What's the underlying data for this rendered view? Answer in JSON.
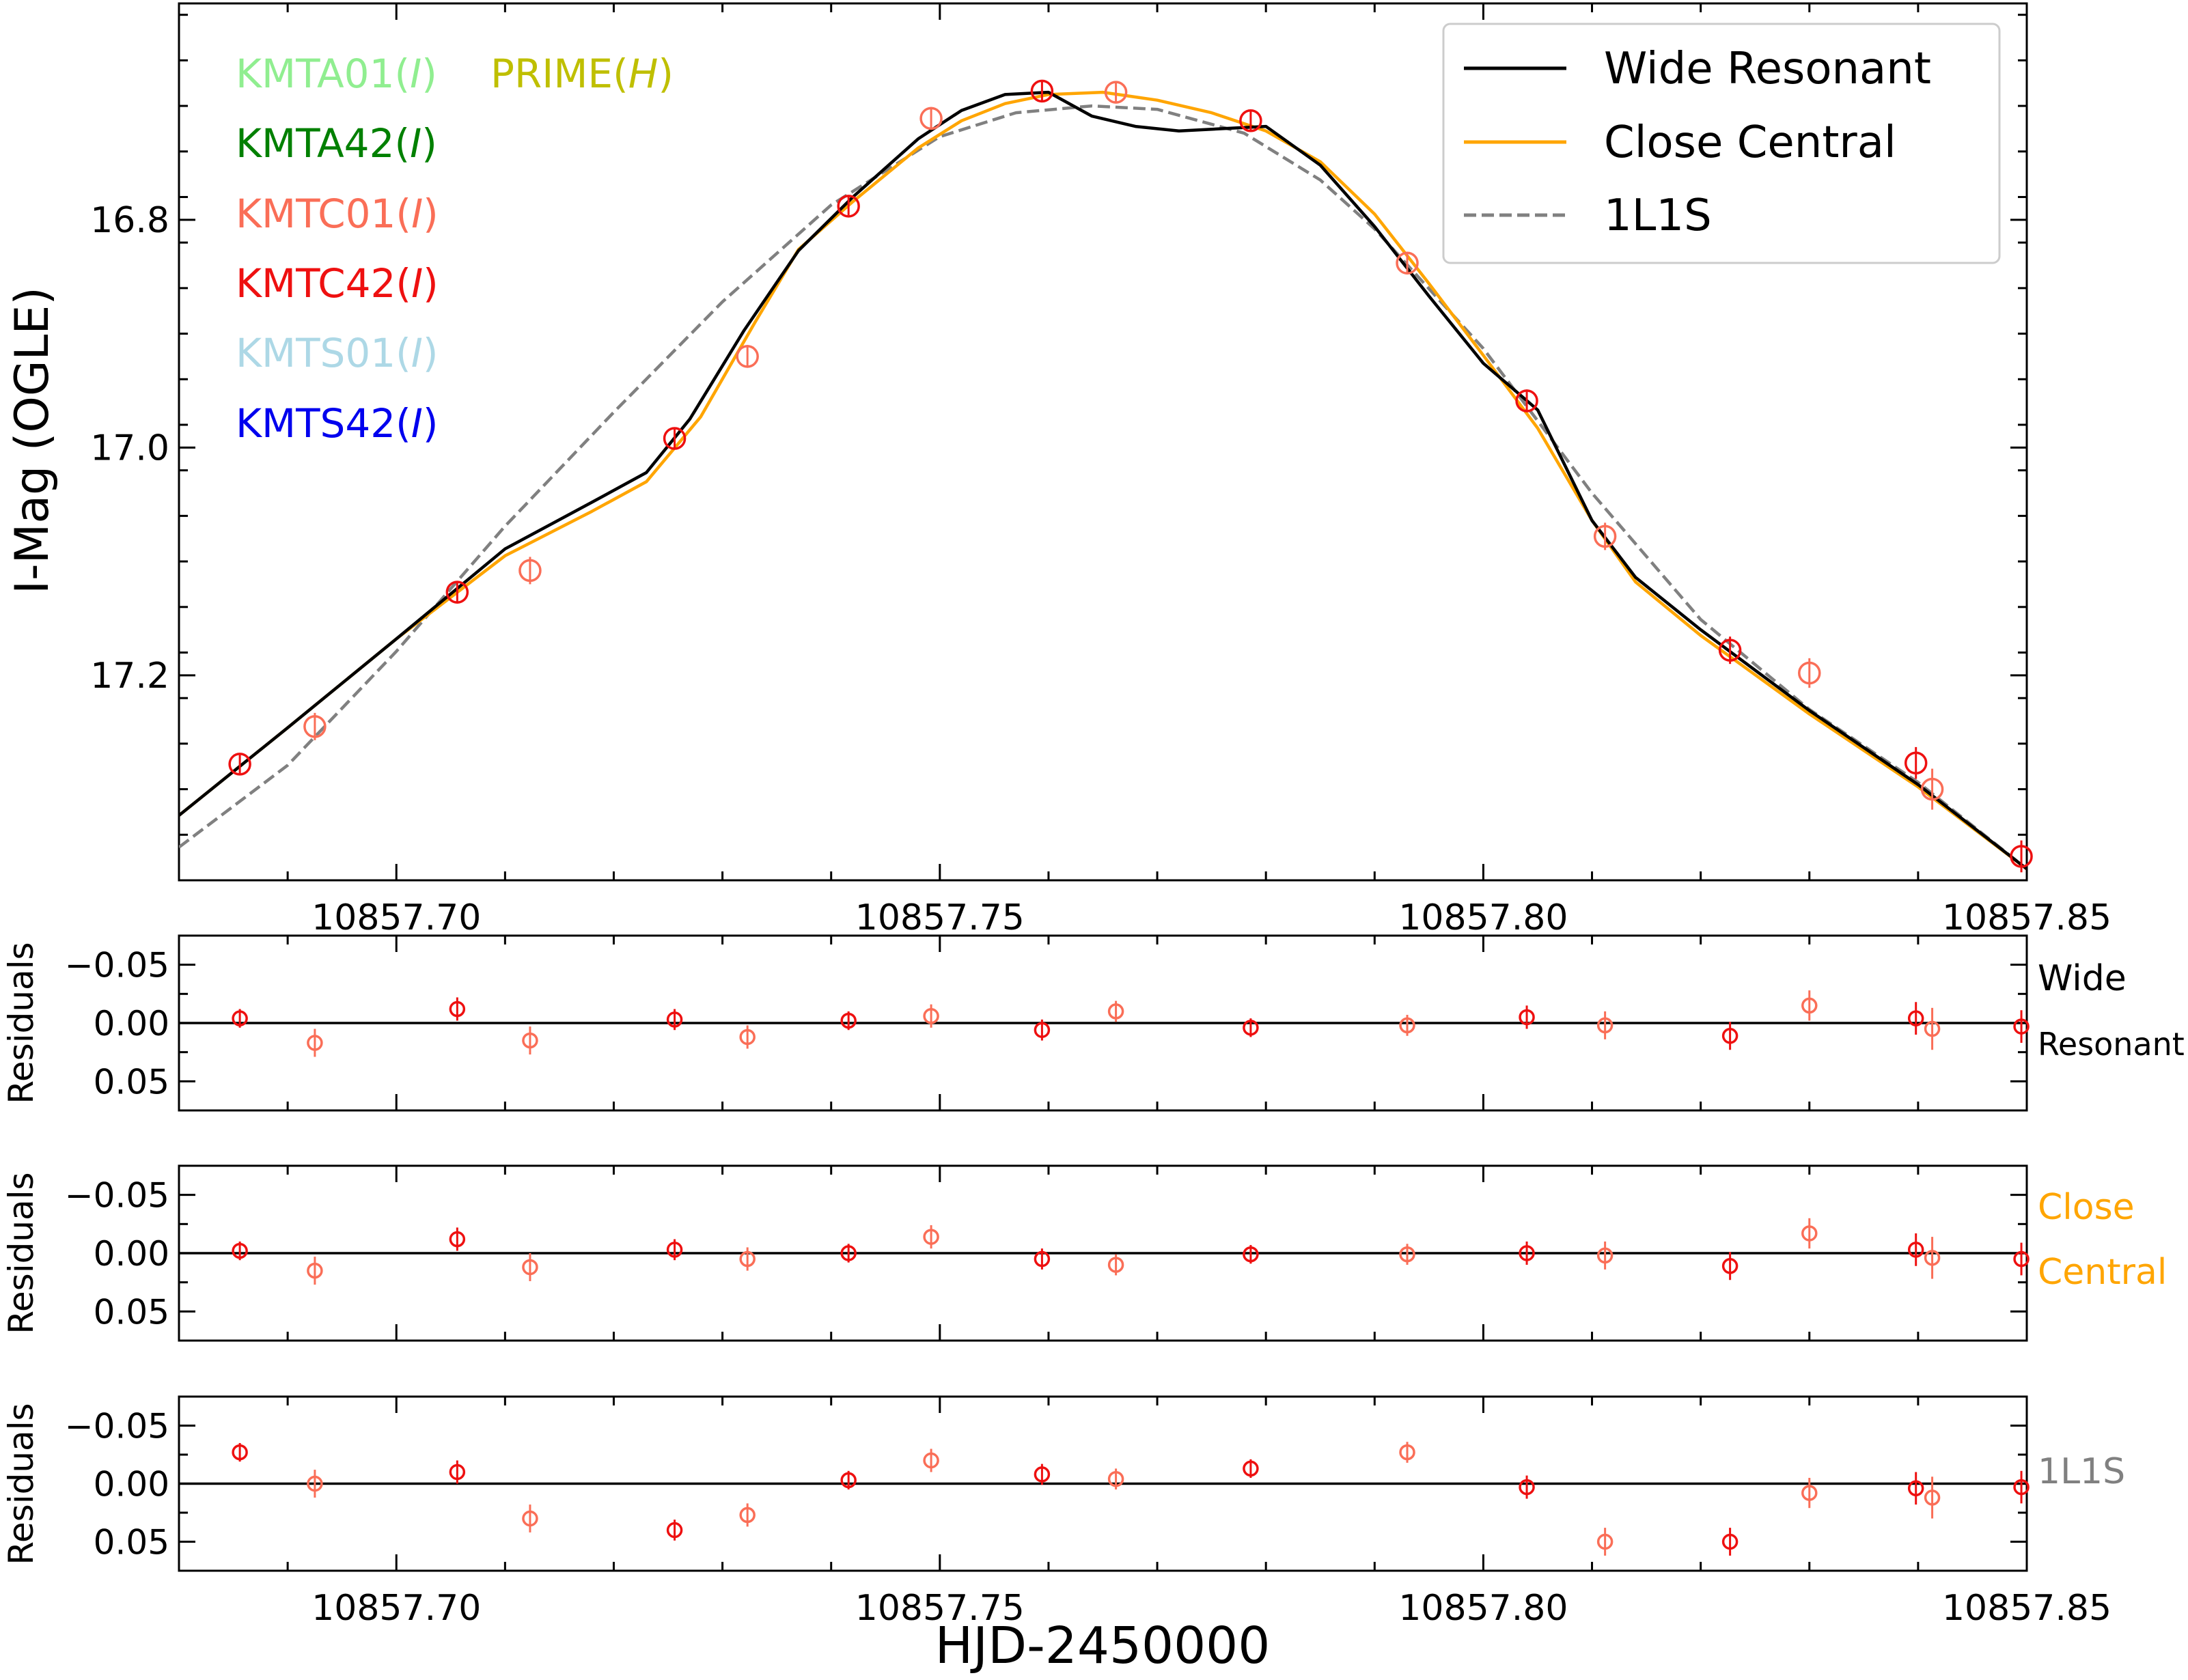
{
  "chart_data": {
    "type": "scatter",
    "xlabel": "HJD-2450000",
    "xlim": [
      10857.68,
      10857.85
    ],
    "x_ticks": [
      10857.7,
      10857.75,
      10857.8,
      10857.85
    ],
    "x_tick_labels": [
      "10857.70",
      "10857.75",
      "10857.80",
      "10857.85"
    ],
    "colors": {
      "wide": "#000000",
      "close": "#ffa500",
      "single": "#808080",
      "kmtc01": "#fa6e57",
      "kmtc42": "#ee1010"
    },
    "main": {
      "ylabel": "I-Mag (OGLE)",
      "ylim": [
        17.38,
        16.61
      ],
      "y_ticks": [
        16.8,
        17.0,
        17.2
      ],
      "y_tick_labels": [
        "16.8",
        "17.0",
        "17.2"
      ],
      "legend_position": "top-right",
      "legend": [
        {
          "label": "Wide Resonant",
          "key": "wide",
          "style": "solid"
        },
        {
          "label": "Close Central",
          "key": "close",
          "style": "solid"
        },
        {
          "label": "1L1S",
          "key": "single",
          "style": "dashed"
        }
      ],
      "datasets_legend": [
        {
          "name": "KMTA01",
          "band": "I",
          "color": "#90ee90"
        },
        {
          "name": "KMTA42",
          "band": "I",
          "color": "#008000"
        },
        {
          "name": "KMTC01",
          "band": "I",
          "color": "#fa6e57"
        },
        {
          "name": "KMTC42",
          "band": "I",
          "color": "#ee1010"
        },
        {
          "name": "KMTS01",
          "band": "I",
          "color": "#add8e6"
        },
        {
          "name": "KMTS42",
          "band": "I",
          "color": "#0000ee"
        },
        {
          "name": "PRIME",
          "band": "H",
          "color": "#bfbf00"
        }
      ],
      "series": [
        {
          "name": "KMTC42",
          "color_key": "kmtc42",
          "x": [
            10857.6856,
            10857.7056,
            10857.7256,
            10857.7416,
            10857.7594,
            10857.7786,
            10857.804,
            10857.8227,
            10857.8398,
            10857.8495
          ],
          "y": [
            17.278,
            17.127,
            16.992,
            16.788,
            16.687,
            16.713,
            16.959,
            17.178,
            17.277,
            17.359
          ],
          "err": [
            0.008,
            0.01,
            0.009,
            0.008,
            0.009,
            0.008,
            0.01,
            0.012,
            0.014,
            0.014
          ]
        },
        {
          "name": "KMTC01",
          "color_key": "kmtc01",
          "x": [
            10857.6925,
            10857.7123,
            10857.7323,
            10857.7492,
            10857.7662,
            10857.793,
            10857.8112,
            10857.83,
            10857.8413
          ],
          "y": [
            17.245,
            17.108,
            16.92,
            16.711,
            16.688,
            16.838,
            17.078,
            17.198,
            17.3
          ],
          "err": [
            0.012,
            0.012,
            0.01,
            0.01,
            0.009,
            0.009,
            0.012,
            0.013,
            0.018
          ]
        }
      ],
      "models": {
        "wide": {
          "x": [
            10857.68,
            10857.69,
            10857.7,
            10857.71,
            10857.718,
            10857.723,
            10857.727,
            10857.732,
            10857.737,
            10857.742,
            10857.748,
            10857.752,
            10857.756,
            10857.76,
            10857.764,
            10857.768,
            10857.772,
            10857.776,
            10857.78,
            10857.785,
            10857.79,
            10857.795,
            10857.8,
            10857.805,
            10857.81,
            10857.814,
            10857.82,
            10857.83,
            10857.84,
            10857.85
          ],
          "y": [
            17.323,
            17.246,
            17.168,
            17.089,
            17.048,
            17.022,
            16.975,
            16.897,
            16.827,
            16.78,
            16.729,
            16.704,
            16.69,
            16.688,
            16.709,
            16.718,
            16.722,
            16.72,
            16.718,
            16.752,
            16.806,
            16.867,
            16.926,
            16.967,
            17.064,
            17.114,
            17.16,
            17.231,
            17.296,
            17.37
          ]
        },
        "close": {
          "x": [
            10857.68,
            10857.69,
            10857.7,
            10857.71,
            10857.718,
            10857.723,
            10857.728,
            10857.733,
            10857.737,
            10857.742,
            10857.748,
            10857.752,
            10857.756,
            10857.76,
            10857.765,
            10857.77,
            10857.775,
            10857.78,
            10857.785,
            10857.79,
            10857.795,
            10857.8,
            10857.805,
            10857.81,
            10857.814,
            10857.82,
            10857.83,
            10857.84,
            10857.85
          ],
          "y": [
            17.323,
            17.246,
            17.168,
            17.095,
            17.056,
            17.03,
            16.973,
            16.89,
            16.826,
            16.784,
            16.737,
            16.713,
            16.698,
            16.69,
            16.688,
            16.695,
            16.706,
            16.722,
            16.749,
            16.795,
            16.856,
            16.919,
            16.983,
            17.064,
            17.118,
            17.165,
            17.234,
            17.298,
            17.37
          ]
        },
        "single": {
          "x": [
            10857.68,
            10857.69,
            10857.7,
            10857.71,
            10857.72,
            10857.73,
            10857.74,
            10857.75,
            10857.757,
            10857.764,
            10857.77,
            10857.778,
            10857.785,
            10857.79,
            10857.8,
            10857.81,
            10857.82,
            10857.83,
            10857.84,
            10857.85
          ],
          "y": [
            17.351,
            17.279,
            17.179,
            17.069,
            16.969,
            16.872,
            16.787,
            16.727,
            16.706,
            16.7,
            16.703,
            16.724,
            16.765,
            16.808,
            16.913,
            17.04,
            17.151,
            17.23,
            17.294,
            17.37
          ]
        }
      }
    },
    "residual_panels": [
      {
        "name": "Wide Resonant",
        "label_lines": [
          "Wide",
          "Resonant"
        ],
        "color_key": "wide",
        "ylabel": "Residuals",
        "ylim": [
          0.075,
          -0.075
        ],
        "y_ticks": [
          -0.05,
          0.0,
          0.05
        ],
        "y_tick_labels": [
          "−0.05",
          "0.00",
          "0.05"
        ],
        "series": [
          {
            "name": "KMTC42",
            "color_key": "kmtc42",
            "x": [
              10857.6856,
              10857.7056,
              10857.7256,
              10857.7416,
              10857.7594,
              10857.7786,
              10857.804,
              10857.8227,
              10857.8398,
              10857.8495
            ],
            "y": [
              -0.004,
              -0.012,
              -0.003,
              -0.002,
              0.006,
              0.004,
              -0.005,
              0.011,
              -0.004,
              0.003
            ],
            "err": [
              0.008,
              0.01,
              0.009,
              0.008,
              0.009,
              0.008,
              0.01,
              0.012,
              0.014,
              0.014
            ]
          },
          {
            "name": "KMTC01",
            "color_key": "kmtc01",
            "x": [
              10857.6925,
              10857.7123,
              10857.7323,
              10857.7492,
              10857.7662,
              10857.793,
              10857.8112,
              10857.83,
              10857.8413
            ],
            "y": [
              0.017,
              0.015,
              0.012,
              -0.006,
              -0.01,
              0.002,
              0.002,
              -0.015,
              0.005
            ],
            "err": [
              0.012,
              0.012,
              0.01,
              0.01,
              0.009,
              0.009,
              0.012,
              0.013,
              0.018
            ]
          }
        ]
      },
      {
        "name": "Close Central",
        "label_lines": [
          "Close",
          "Central"
        ],
        "color_key": "close",
        "ylabel": "Residuals",
        "ylim": [
          0.075,
          -0.075
        ],
        "y_ticks": [
          -0.05,
          0.0,
          0.05
        ],
        "y_tick_labels": [
          "−0.05",
          "0.00",
          "0.05"
        ],
        "series": [
          {
            "name": "KMTC42",
            "color_key": "kmtc42",
            "x": [
              10857.6856,
              10857.7056,
              10857.7256,
              10857.7416,
              10857.7594,
              10857.7786,
              10857.804,
              10857.8227,
              10857.8398,
              10857.8495
            ],
            "y": [
              -0.002,
              -0.012,
              -0.003,
              0.0,
              0.005,
              0.001,
              0.0,
              0.011,
              -0.003,
              0.005
            ],
            "err": [
              0.008,
              0.01,
              0.009,
              0.008,
              0.009,
              0.008,
              0.01,
              0.012,
              0.014,
              0.014
            ]
          },
          {
            "name": "KMTC01",
            "color_key": "kmtc01",
            "x": [
              10857.6925,
              10857.7123,
              10857.7323,
              10857.7492,
              10857.7662,
              10857.793,
              10857.8112,
              10857.83,
              10857.8413
            ],
            "y": [
              0.015,
              0.012,
              0.005,
              -0.014,
              0.01,
              0.001,
              0.002,
              -0.017,
              0.004
            ],
            "err": [
              0.012,
              0.012,
              0.01,
              0.01,
              0.009,
              0.009,
              0.012,
              0.013,
              0.018
            ]
          }
        ]
      },
      {
        "name": "1L1S",
        "label_lines": [
          "1L1S"
        ],
        "color_key": "single",
        "ylabel": "Residuals",
        "ylim": [
          0.075,
          -0.075
        ],
        "y_ticks": [
          -0.05,
          0.0,
          0.05
        ],
        "y_tick_labels": [
          "−0.05",
          "0.00",
          "0.05"
        ],
        "series": [
          {
            "name": "KMTC42",
            "color_key": "kmtc42",
            "x": [
              10857.6856,
              10857.7056,
              10857.7256,
              10857.7416,
              10857.7594,
              10857.7786,
              10857.804,
              10857.8227,
              10857.8398,
              10857.8495
            ],
            "y": [
              -0.027,
              -0.01,
              0.04,
              -0.003,
              -0.008,
              -0.013,
              0.003,
              0.05,
              0.004,
              0.003
            ],
            "err": [
              0.008,
              0.01,
              0.009,
              0.008,
              0.009,
              0.008,
              0.01,
              0.012,
              0.014,
              0.014
            ]
          },
          {
            "name": "KMTC01",
            "color_key": "kmtc01",
            "x": [
              10857.6925,
              10857.7123,
              10857.7323,
              10857.7492,
              10857.7662,
              10857.793,
              10857.8112,
              10857.83,
              10857.8413
            ],
            "y": [
              0.0,
              0.03,
              0.027,
              -0.02,
              -0.004,
              -0.027,
              0.05,
              0.008,
              0.012
            ],
            "err": [
              0.012,
              0.012,
              0.01,
              0.01,
              0.009,
              0.009,
              0.012,
              0.013,
              0.018
            ]
          }
        ]
      }
    ]
  }
}
